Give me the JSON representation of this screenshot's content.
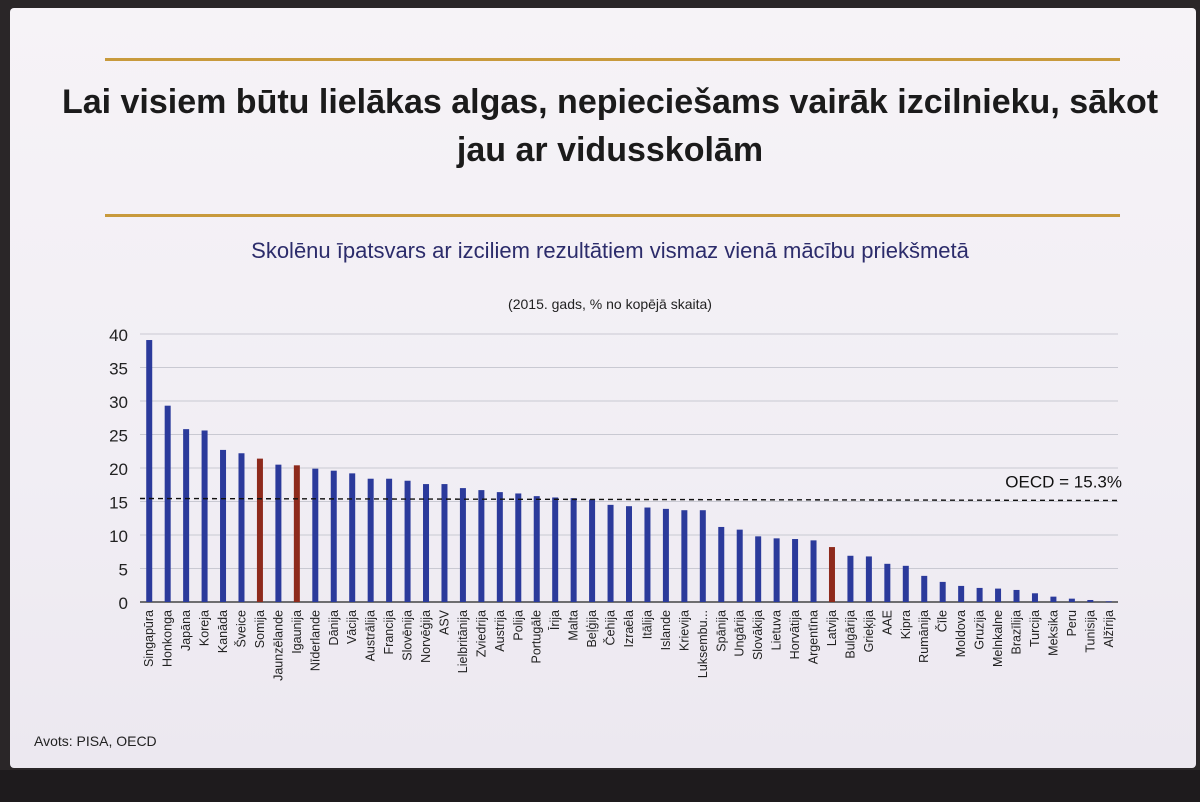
{
  "slide": {
    "title": "Lai visiem būtu lielākas algas, nepieciešams vairāk izcilnieku, sākot jau ar vidusskolām",
    "subtitle": "Skolēnu īpatsvars ar izciliem rezultātiem vismaz vienā mācību priekšmetā",
    "subnote": "(2015. gads, % no kopējā skaita)",
    "source": "Avots: PISA, OECD",
    "colors": {
      "bar": "#2b3a9b",
      "highlight": "#8e2a1c",
      "rule": "#c89a3c",
      "grid": "#c9c9d2"
    }
  },
  "chart_data": {
    "type": "bar",
    "title": "Skolēnu īpatsvars ar izciliem rezultātiem vismaz vienā mācību priekšmetā",
    "ylim": [
      0,
      40
    ],
    "yticks": [
      "0",
      "5",
      "10",
      "15",
      "20",
      "25",
      "30",
      "35",
      "40"
    ],
    "grid": true,
    "categories": [
      "Singapūra",
      "Honkonga",
      "Japāna",
      "Koreja",
      "Kanāda",
      "Šveice",
      "Somija",
      "Jaunzēlande",
      "Igaunija",
      "Nīderlande",
      "Dānija",
      "Vācija",
      "Austrālija",
      "Francija",
      "Slovēnija",
      "Norvēģija",
      "ASV",
      "Lielbritānija",
      "Zviedrija",
      "Austrija",
      "Polija",
      "Portugāle",
      "Īrija",
      "Malta",
      "Beļģija",
      "Čehija",
      "Izraēla",
      "Itālija",
      "Islande",
      "Krievija",
      "Luksembu...",
      "Spānija",
      "Ungārija",
      "Slovākija",
      "Lietuva",
      "Horvātija",
      "Argentīna",
      "Latvija",
      "Bulgārija",
      "Grieķija",
      "AAE",
      "Kipra",
      "Rumānija",
      "Čīle",
      "Moldova",
      "Gruzija",
      "Melnkalne",
      "Brazīlija",
      "Turcija",
      "Meksika",
      "Peru",
      "Tunisija",
      "Alžīrija"
    ],
    "values": [
      39.1,
      29.3,
      25.8,
      25.6,
      22.7,
      22.2,
      21.4,
      20.5,
      20.4,
      19.9,
      19.6,
      19.2,
      18.4,
      18.4,
      18.1,
      17.6,
      17.6,
      17.0,
      16.7,
      16.4,
      16.2,
      15.8,
      15.6,
      15.5,
      15.3,
      14.5,
      14.3,
      14.1,
      13.9,
      13.7,
      13.7,
      11.2,
      10.8,
      9.8,
      9.5,
      9.4,
      9.2,
      8.2,
      6.9,
      6.8,
      5.7,
      5.4,
      3.9,
      3.0,
      2.4,
      2.1,
      2.0,
      1.8,
      1.3,
      0.8,
      0.5,
      0.3,
      0.1
    ],
    "highlight": [
      "Somija",
      "Igaunija",
      "Latvija"
    ],
    "reference_line": {
      "label": "OECD = 15.3%",
      "value": 15.3
    }
  }
}
